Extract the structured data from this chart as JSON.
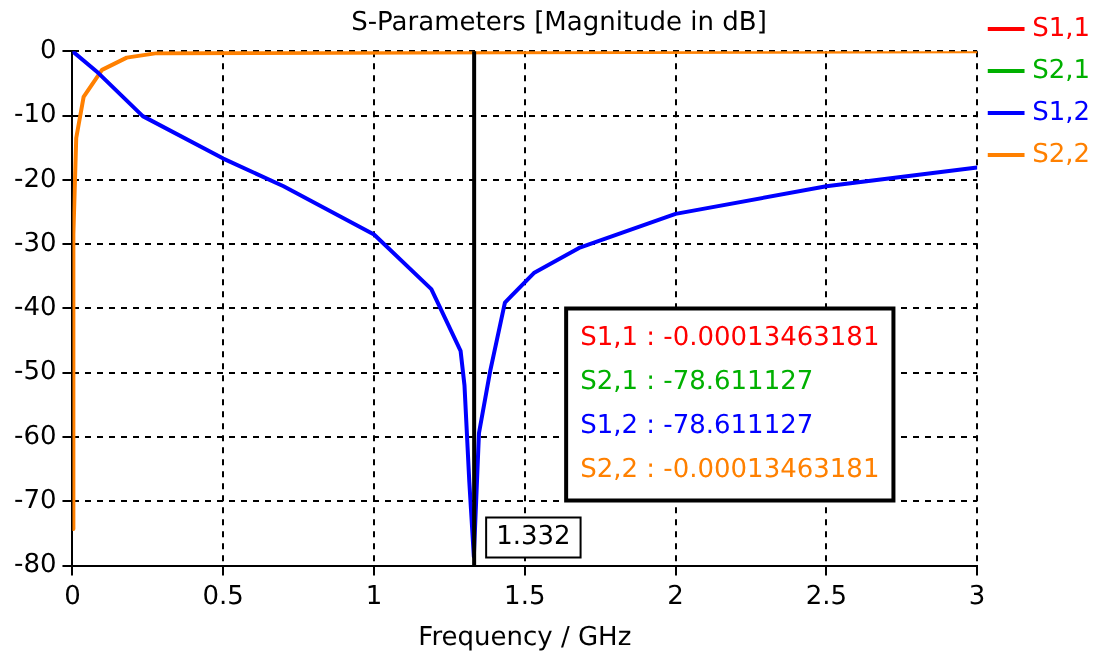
{
  "chart_data": {
    "type": "line",
    "title": "S-Parameters [Magnitude in dB]",
    "xlabel": "Frequency / GHz",
    "xlim": [
      0,
      3
    ],
    "xticks": [
      0,
      0.5,
      1,
      1.5,
      2,
      2.5,
      3
    ],
    "ylim": [
      -80,
      0
    ],
    "yticks": [
      0,
      -10,
      -20,
      -30,
      -40,
      -50,
      -60,
      -70,
      -80
    ],
    "grid": true,
    "legend": "right",
    "marker": "none",
    "line_style": "solid",
    "series": [
      {
        "name": "S1,1",
        "color": "#ff0000"
      },
      {
        "name": "S2,1",
        "color": "#00b000"
      },
      {
        "name": "S1,2",
        "color": "#0000ff",
        "x": [
          0,
          0.086,
          0.233,
          0.5,
          0.7,
          1.0,
          1.19,
          1.287,
          1.3,
          1.316,
          1.331,
          1.348,
          1.385,
          1.434,
          1.53,
          1.68,
          2.0,
          2.5,
          3.0
        ],
        "values": [
          0,
          -3.4,
          -10.1,
          -16.7,
          -21,
          -28.5,
          -37,
          -46.6,
          -52,
          -67,
          -78.6,
          -59.4,
          -49.8,
          -39.1,
          -34.5,
          -30.6,
          -25.3,
          -21,
          -18.1
        ]
      },
      {
        "name": "S2,2",
        "color": "#ff8000",
        "x": [
          0,
          0.003,
          0.0125,
          0.037,
          0.098,
          0.18,
          0.28,
          3.0
        ],
        "values": [
          -74.3,
          -28.5,
          -13.5,
          -7.1,
          -2.9,
          -1,
          -0.3,
          0
        ]
      }
    ],
    "ref_lines": [
      {
        "axis": "x",
        "value": 1.332,
        "label": "1.332",
        "color": "#000000"
      }
    ],
    "annotations": [
      "S1,1 : -0.00013463181",
      "S2,1 : -78.611127",
      "S1,2 : -78.611127",
      "S2,2 : -0.00013463181"
    ]
  }
}
